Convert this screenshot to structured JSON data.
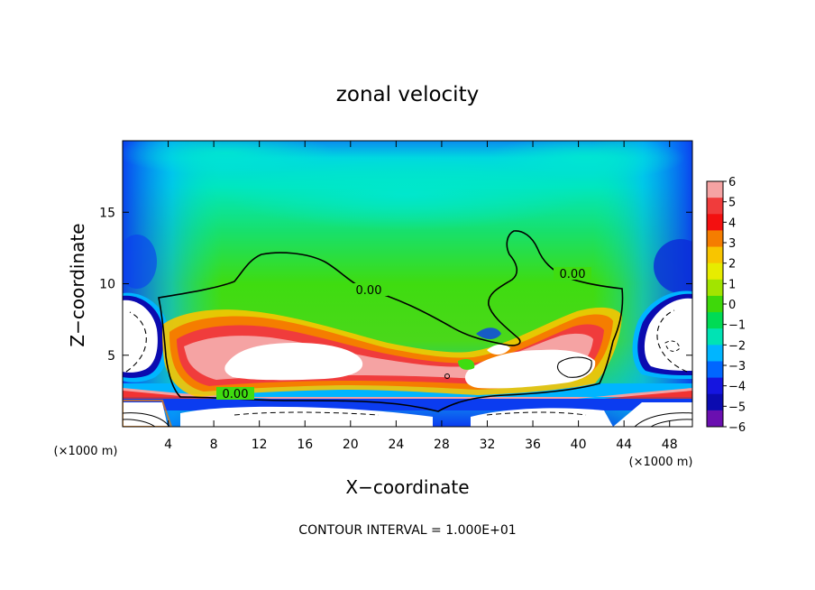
{
  "chart_data": {
    "type": "heatmap",
    "title": "zonal velocity",
    "xlabel": "X−coordinate",
    "ylabel": "Z−coordinate",
    "x_unit_left": "(×1000 m)",
    "x_unit_right": "(×1000 m)",
    "xlim": [
      0,
      50
    ],
    "ylim": [
      0,
      20
    ],
    "x_ticks": [
      4,
      8,
      12,
      16,
      20,
      24,
      28,
      32,
      36,
      40,
      44,
      48
    ],
    "x_tick_labels": [
      "4",
      "8",
      "12",
      "16",
      "20",
      "24",
      "28",
      "32",
      "36",
      "40",
      "44",
      "48"
    ],
    "y_ticks": [
      5,
      10,
      15
    ],
    "y_tick_labels": [
      "5",
      "10",
      "15"
    ],
    "colorbar": {
      "min": -6,
      "max": 6,
      "tick_labels": [
        "6",
        "5",
        "4",
        "3",
        "2",
        "1",
        "0",
        "−1",
        "−2",
        "−3",
        "−4",
        "−5",
        "−6"
      ],
      "colors": [
        "#f5a3a3",
        "#f03c3c",
        "#f31010",
        "#f57d00",
        "#f8c500",
        "#e7ec00",
        "#a2e400",
        "#3ed80a",
        "#00db55",
        "#00e3b4",
        "#00b5ff",
        "#0066ff",
        "#1515e0",
        "#0b0bb0",
        "#6a0fb0"
      ]
    },
    "contour_labels": [
      "0.00",
      "0.00",
      "0.00"
    ],
    "footer": "CONTOUR INTERVAL = 1.000E+01",
    "colors": {
      "top_edge": "#0a8cf0",
      "mid_green": "#3fdc10",
      "cyan": "#00e7c0",
      "deep_blue": "#0b3cf0",
      "strong_red": "#f01818",
      "pink": "#f5a0a0"
    }
  }
}
